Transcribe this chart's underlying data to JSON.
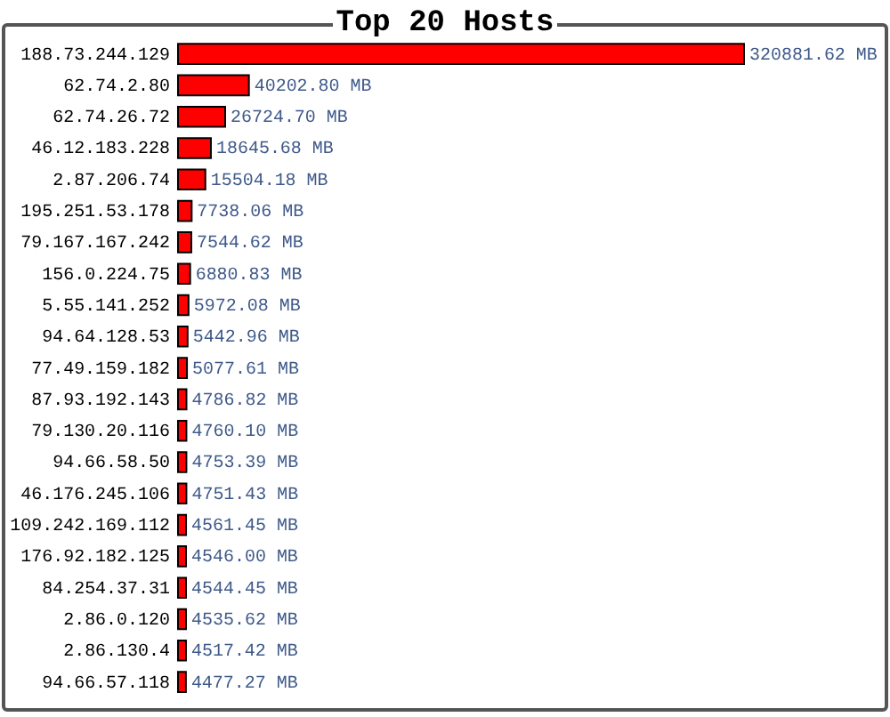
{
  "chart_data": {
    "type": "bar",
    "orientation": "horizontal",
    "title": "Top 20 Hosts",
    "color": "#ff0000",
    "categories": [
      "188.73.244.129",
      "62.74.2.80",
      "62.74.26.72",
      "46.12.183.228",
      "2.87.206.74",
      "195.251.53.178",
      "79.167.167.242",
      "156.0.224.75",
      "5.55.141.252",
      "94.64.128.53",
      "77.49.159.182",
      "87.93.192.143",
      "79.130.20.116",
      "94.66.58.50",
      "46.176.245.106",
      "109.242.169.112",
      "176.92.182.125",
      "84.254.37.31",
      "2.86.0.120",
      "2.86.130.4",
      "94.66.57.118"
    ],
    "values": [
      320881.62,
      40202.8,
      26724.7,
      18645.68,
      15504.18,
      7738.06,
      7544.62,
      6880.83,
      5972.08,
      5442.96,
      5077.61,
      4786.82,
      4760.1,
      4753.39,
      4751.43,
      4561.45,
      4546.0,
      4544.45,
      4535.62,
      4517.42,
      4477.27
    ],
    "value_labels": [
      "320881.62 MB",
      "40202.80 MB",
      "26724.70 MB",
      "18645.68 MB",
      "15504.18 MB",
      "7738.06 MB",
      "7544.62 MB",
      "6880.83 MB",
      "5972.08 MB",
      "5442.96 MB",
      "5077.61 MB",
      "4786.82 MB",
      "4760.10 MB",
      "4753.39 MB",
      "4751.43 MB",
      "4561.45 MB",
      "4546.00 MB",
      "4544.45 MB",
      "4535.62 MB",
      "4517.42 MB",
      "4477.27 MB"
    ]
  }
}
